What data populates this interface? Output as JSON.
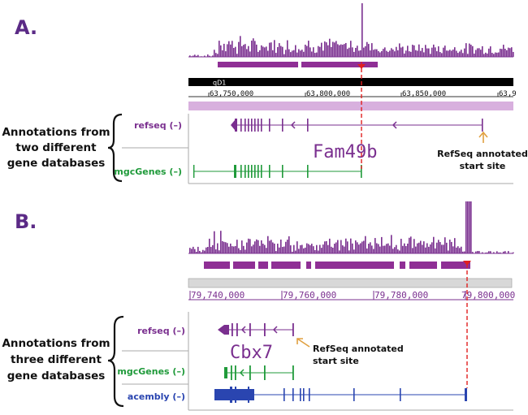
{
  "panelA": {
    "label": "A.",
    "chrom_band": "qD1",
    "ticks": [
      "63,750,000",
      "63,800,000",
      "63,850,000",
      "63,9"
    ],
    "group_label": [
      "Annotations from",
      "two different",
      "gene databases"
    ],
    "tracks": [
      {
        "name": "refseq (–)",
        "color": "#7a2f8f"
      },
      {
        "name": "mgcGenes (–)",
        "color": "#1f9a3a"
      }
    ],
    "gene_name": "Fam49b",
    "note": [
      "RefSeq annotated",
      "start site"
    ]
  },
  "panelB": {
    "label": "B.",
    "ticks": [
      "79,740,000",
      "79,760,000",
      "79,780,000",
      "79,800,000"
    ],
    "group_label": [
      "Annotations from",
      "three different",
      "gene databases"
    ],
    "tracks": [
      {
        "name": "refseq (–)",
        "color": "#7a2f8f"
      },
      {
        "name": "mgcGenes (–)",
        "color": "#1f9a3a"
      },
      {
        "name": "acembly (–)",
        "color": "#2a45b0"
      }
    ],
    "gene_name": "Cbx7",
    "note": [
      "RefSeq annotated",
      "start site"
    ]
  },
  "colors": {
    "purple": "#7a2f8f",
    "green": "#1f9a3a",
    "blue": "#2a45b0",
    "orange": "#e0a040",
    "red_guide": "#e02020"
  }
}
